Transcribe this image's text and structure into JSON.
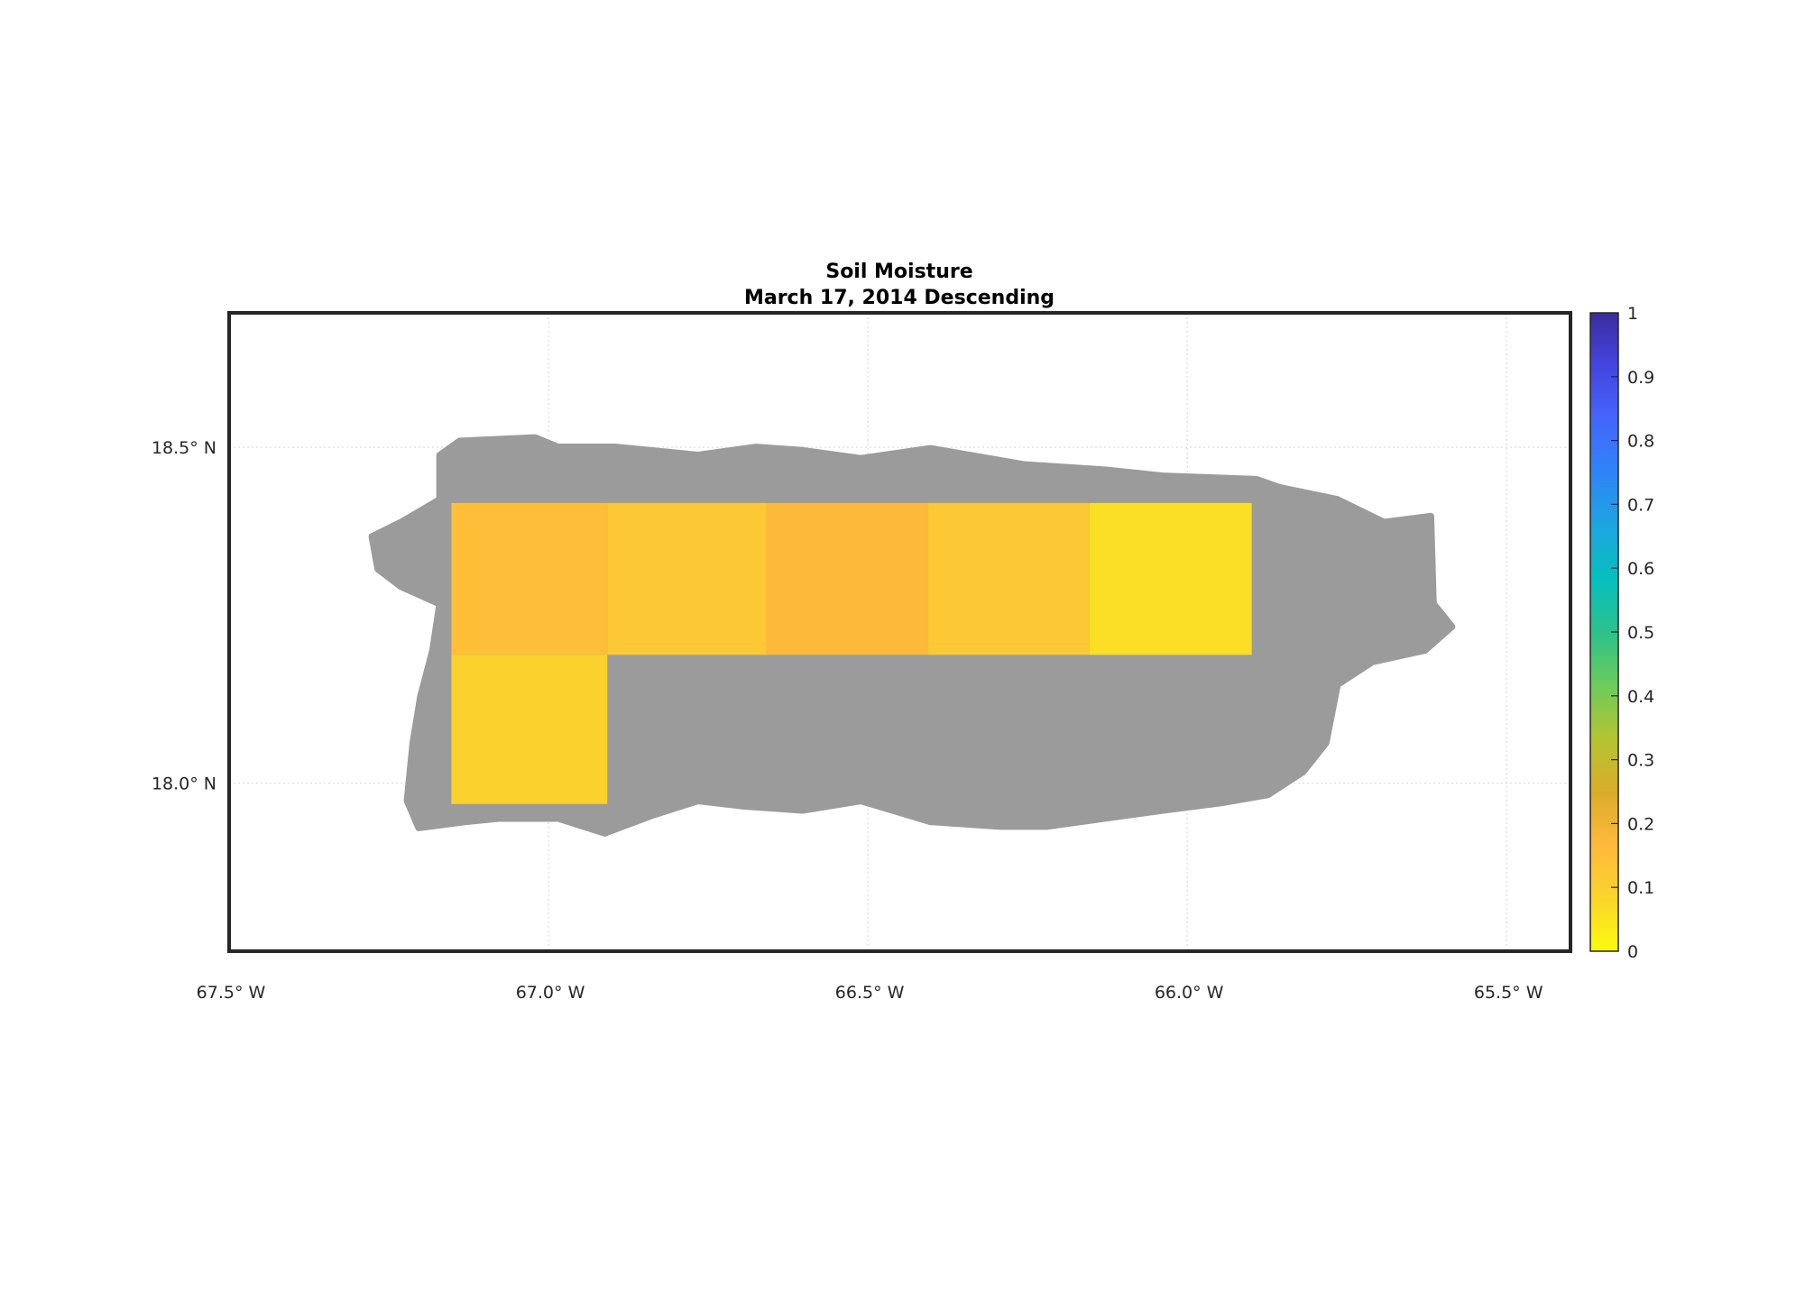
{
  "chart_data": {
    "type": "heatmap",
    "title": "Soil Moisture",
    "subtitle": "March 17, 2014 Descending",
    "xlim": [
      -67.5,
      -65.4
    ],
    "ylim": [
      17.75,
      18.7
    ],
    "grid": true,
    "x_ticks": [
      {
        "value": -67.5,
        "label": "67.5° W"
      },
      {
        "value": -67.0,
        "label": "67.0° W"
      },
      {
        "value": -66.5,
        "label": "66.5° W"
      },
      {
        "value": -66.0,
        "label": "66.0° W"
      },
      {
        "value": -65.5,
        "label": "65.5° W"
      }
    ],
    "y_ticks": [
      {
        "value": 18.5,
        "label": "18.5° N"
      },
      {
        "value": 18.0,
        "label": "18.0° N"
      }
    ],
    "colorbar": {
      "range": [
        0,
        1
      ],
      "ticks": [
        "0",
        "0.1",
        "0.2",
        "0.3",
        "0.4",
        "0.5",
        "0.6",
        "0.7",
        "0.8",
        "0.9",
        "1"
      ],
      "colormap": [
        "#f9fb0e",
        "#fbd42c",
        "#feb93b",
        "#d9ad2a",
        "#b3c432",
        "#6ccc5c",
        "#2bc28a",
        "#06bfc0",
        "#1ea4e0",
        "#2f84f7",
        "#4466fb",
        "#4545e0",
        "#3b2c9d"
      ],
      "location": "right"
    },
    "no_data_color": "#9b9b9b",
    "land_outline": [
      [
        -67.17,
        18.488
      ],
      [
        -67.139,
        18.509
      ],
      [
        -67.021,
        18.514
      ],
      [
        -66.985,
        18.5
      ],
      [
        -66.894,
        18.5
      ],
      [
        -66.766,
        18.488
      ],
      [
        -66.675,
        18.5
      ],
      [
        -66.602,
        18.495
      ],
      [
        -66.511,
        18.483
      ],
      [
        -66.402,
        18.498
      ],
      [
        -66.256,
        18.474
      ],
      [
        -66.129,
        18.466
      ],
      [
        -66.038,
        18.457
      ],
      [
        -65.892,
        18.452
      ],
      [
        -65.856,
        18.44
      ],
      [
        -65.765,
        18.422
      ],
      [
        -65.692,
        18.388
      ],
      [
        -65.619,
        18.397
      ],
      [
        -65.615,
        18.267
      ],
      [
        -65.586,
        18.233
      ],
      [
        -65.628,
        18.198
      ],
      [
        -65.71,
        18.181
      ],
      [
        -65.765,
        18.147
      ],
      [
        -65.783,
        18.06
      ],
      [
        -65.819,
        18.017
      ],
      [
        -65.874,
        17.983
      ],
      [
        -65.947,
        17.971
      ],
      [
        -66.038,
        17.96
      ],
      [
        -66.129,
        17.948
      ],
      [
        -66.22,
        17.936
      ],
      [
        -66.293,
        17.936
      ],
      [
        -66.402,
        17.943
      ],
      [
        -66.511,
        17.974
      ],
      [
        -66.602,
        17.96
      ],
      [
        -66.693,
        17.966
      ],
      [
        -66.766,
        17.974
      ],
      [
        -66.839,
        17.952
      ],
      [
        -66.912,
        17.926
      ],
      [
        -66.985,
        17.948
      ],
      [
        -67.076,
        17.948
      ],
      [
        -67.13,
        17.943
      ],
      [
        -67.203,
        17.934
      ],
      [
        -67.221,
        17.974
      ],
      [
        -67.212,
        18.06
      ],
      [
        -67.2,
        18.129
      ],
      [
        -67.181,
        18.198
      ],
      [
        -67.17,
        18.267
      ],
      [
        -67.231,
        18.293
      ],
      [
        -67.267,
        18.319
      ],
      [
        -67.276,
        18.367
      ],
      [
        -67.231,
        18.388
      ],
      [
        -67.17,
        18.422
      ]
    ],
    "cells": [
      {
        "lon": [
          -67.152,
          -66.908
        ],
        "lat": [
          18.191,
          18.417
        ],
        "value": 0.15
      },
      {
        "lon": [
          -66.908,
          -66.659
        ],
        "lat": [
          18.191,
          18.417
        ],
        "value": 0.12
      },
      {
        "lon": [
          -66.659,
          -66.406
        ],
        "lat": [
          18.191,
          18.417
        ],
        "value": 0.17
      },
      {
        "lon": [
          -66.406,
          -66.153
        ],
        "lat": [
          18.191,
          18.417
        ],
        "value": 0.12
      },
      {
        "lon": [
          -66.153,
          -65.899
        ],
        "lat": [
          18.191,
          18.417
        ],
        "value": 0.06
      },
      {
        "lon": [
          -67.152,
          -66.908
        ],
        "lat": [
          17.969,
          18.191
        ],
        "value": 0.09
      }
    ]
  }
}
